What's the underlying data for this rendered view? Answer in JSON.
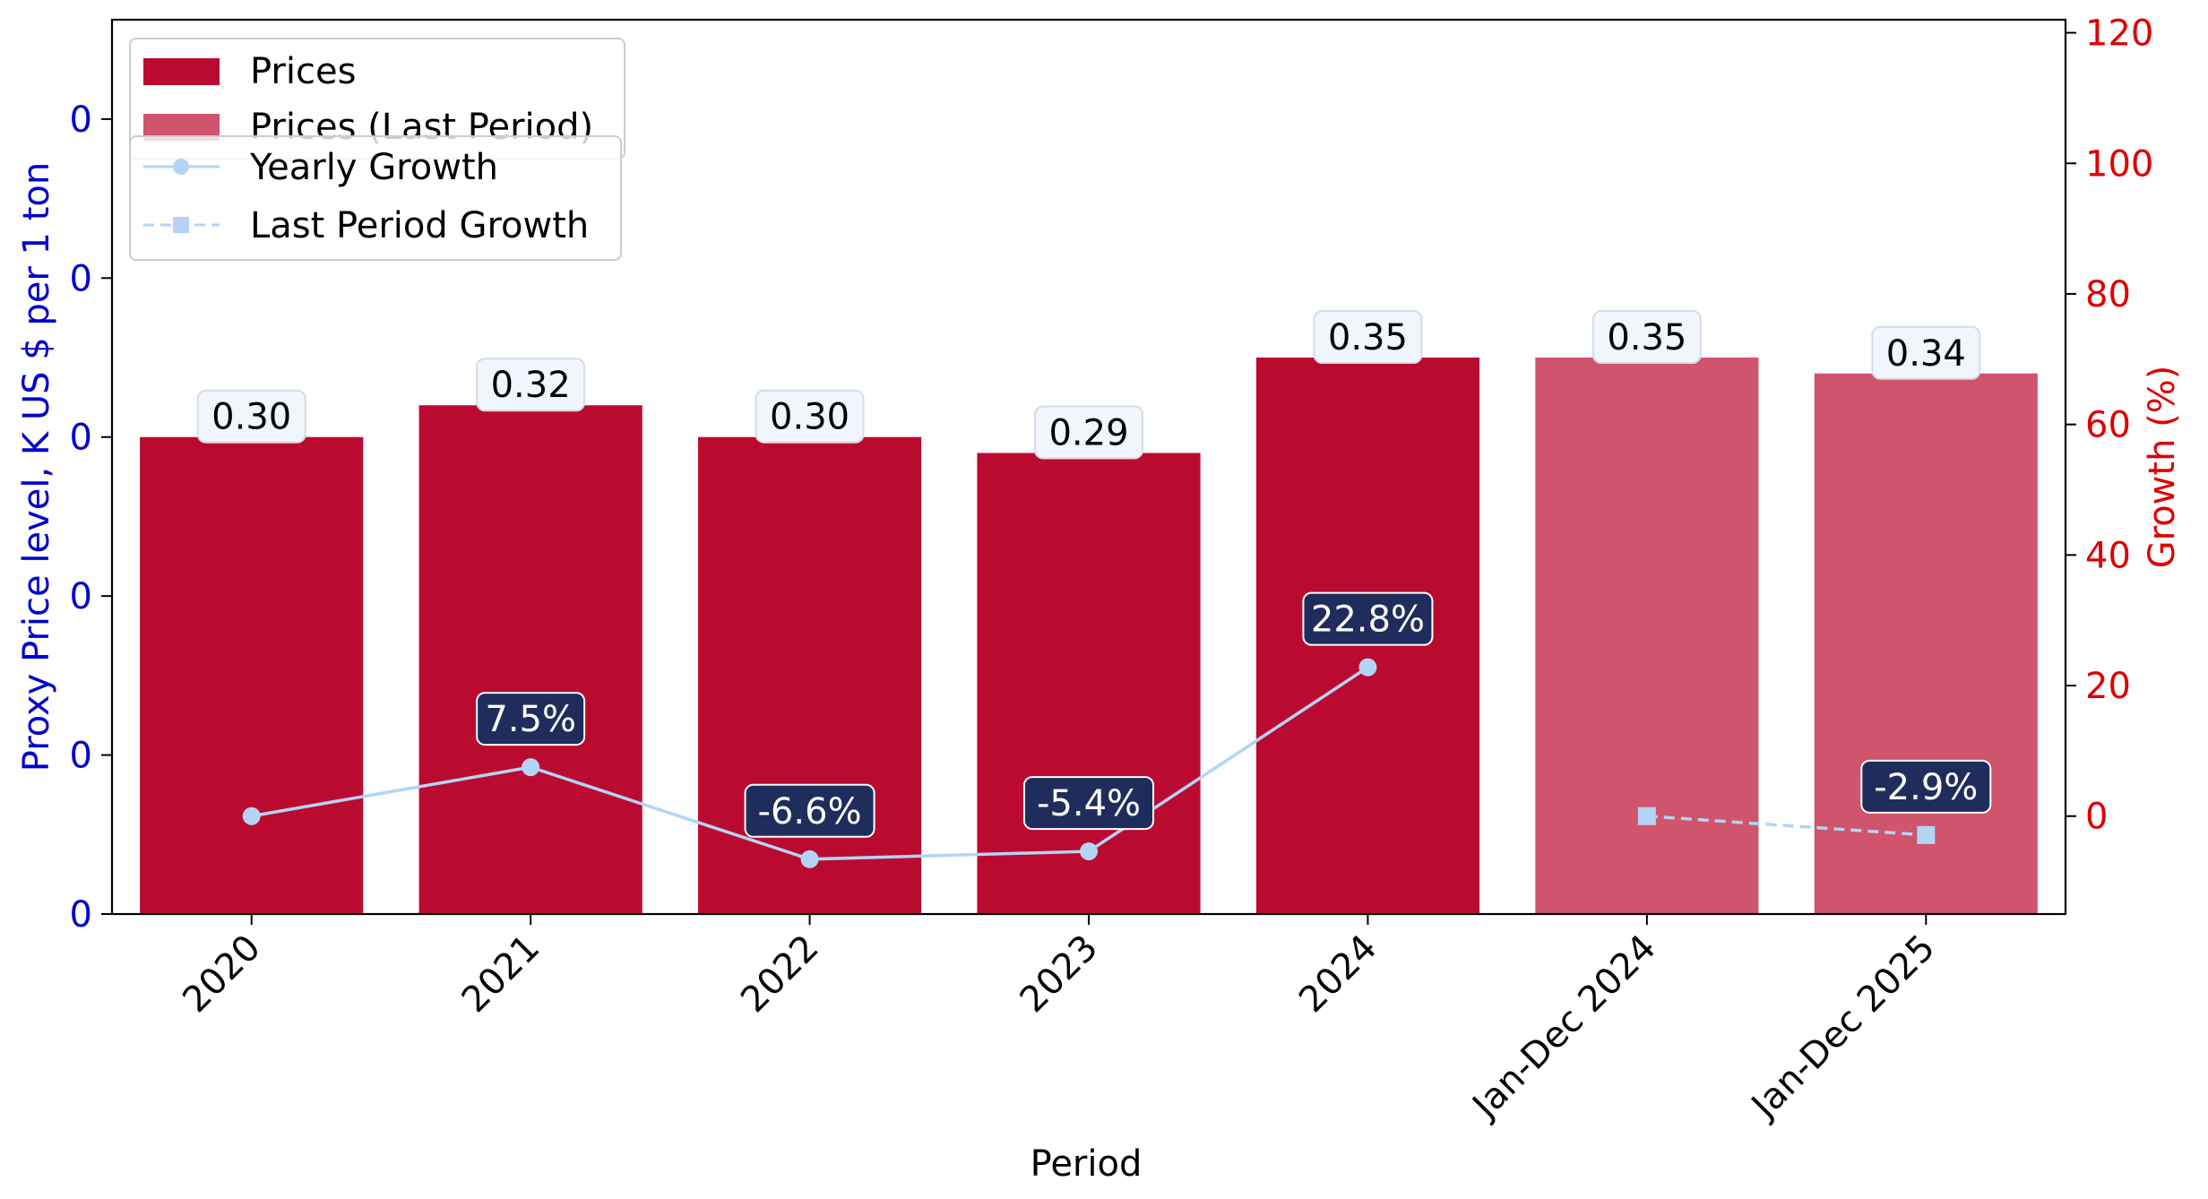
{
  "chart_data": {
    "type": "bar",
    "xlabel": "Period",
    "ylabel_left": "Proxy Price level, K US $ per 1 ton",
    "ylabel_right": "Growth (%)",
    "categories": [
      "2020",
      "2021",
      "2022",
      "2023",
      "2024",
      "Jan-Dec 2024",
      "Jan-Dec 2025"
    ],
    "left_axis": {
      "range": [
        0,
        0.5625
      ],
      "ticks": [
        0,
        0.1,
        0.2,
        0.3,
        0.4,
        0.5
      ],
      "tick_labels": [
        "0",
        "0",
        "0",
        "0",
        "0",
        "0"
      ]
    },
    "right_axis": {
      "range": [
        -15,
        122
      ],
      "ticks": [
        0,
        20,
        40,
        60,
        80,
        100,
        120
      ],
      "tick_labels": [
        "0",
        "20",
        "40",
        "60",
        "80",
        "100",
        "120"
      ]
    },
    "series": [
      {
        "name": "Prices",
        "kind": "bar",
        "color": "#bb0a30",
        "values": [
          0.3,
          0.32,
          0.3,
          0.29,
          0.35,
          null,
          null
        ],
        "labels": [
          "0.30",
          "0.32",
          "0.30",
          "0.29",
          "0.35",
          "",
          ""
        ]
      },
      {
        "name": "Prices (Last Period)",
        "kind": "bar",
        "color": "#d0546c",
        "values": [
          null,
          null,
          null,
          null,
          null,
          0.35,
          0.34
        ],
        "labels": [
          "",
          "",
          "",
          "",
          "",
          "0.35",
          "0.34"
        ]
      },
      {
        "name": "Yearly Growth",
        "kind": "line",
        "style": "solid",
        "marker": "circle",
        "color": "#b3d4f5",
        "values": [
          0,
          7.5,
          -6.6,
          -5.4,
          22.8,
          null,
          null
        ],
        "labels": [
          "",
          "7.5%",
          "-6.6%",
          "-5.4%",
          "22.8%",
          "",
          ""
        ]
      },
      {
        "name": "Last Period Growth",
        "kind": "line",
        "style": "dashed",
        "marker": "square",
        "color": "#b3d4f5",
        "values": [
          null,
          null,
          null,
          null,
          null,
          0,
          -2.9
        ],
        "labels": [
          "",
          "",
          "",
          "",
          "",
          "",
          "-2.9%"
        ]
      }
    ],
    "colors": {
      "left_axis": "#0000cc",
      "right_axis": "#dd0000",
      "growth_label_bg": "#1f2d5c",
      "price_label_bg": "#f0f6fc"
    },
    "legend": {
      "placement": "top-left"
    },
    "grid": false
  }
}
